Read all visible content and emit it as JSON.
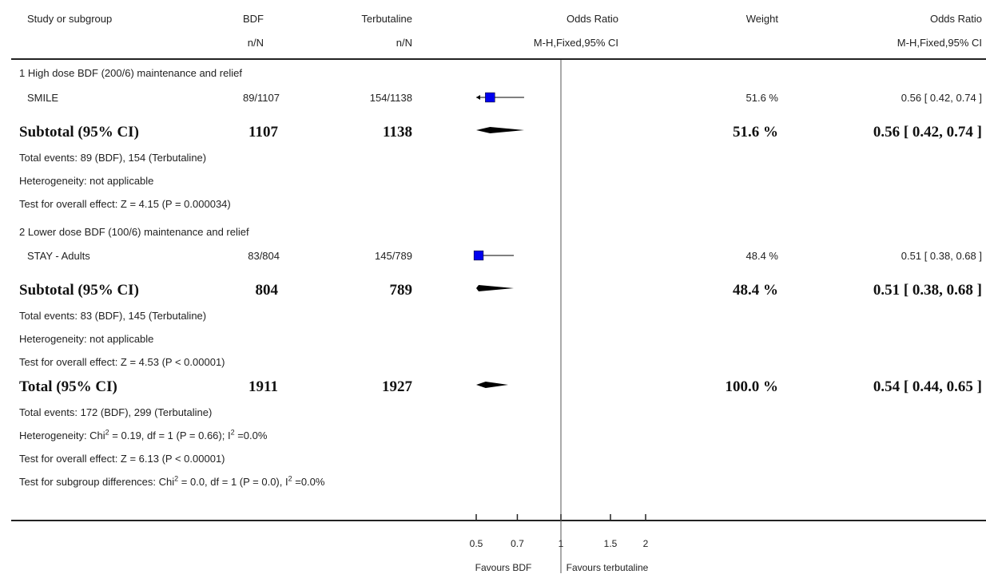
{
  "header": {
    "study": "Study or subgroup",
    "bdf": "BDF",
    "terb": "Terbutaline",
    "or": "Odds Ratio",
    "weight": "Weight",
    "or2": "Odds Ratio",
    "bdf_sub": "n/N",
    "terb_sub": "n/N",
    "or_sub": "M-H,Fixed,95% CI",
    "or2_sub": "M-H,Fixed,95% CI"
  },
  "groups": [
    {
      "title": "1 High dose BDF (200/6) maintenance and relief",
      "study": {
        "name": "SMILE",
        "bdf": "89/1107",
        "terb": "154/1138",
        "weight": "51.6 %",
        "ci_text": "0.56 [ 0.42, 0.74 ]"
      },
      "subtotal": {
        "label": "Subtotal (95% CI)",
        "bdf": "1107",
        "terb": "1138",
        "weight": "51.6 %",
        "ci_text": "0.56 [ 0.42, 0.74 ]"
      },
      "notes": [
        "Total events: 89 (BDF), 154 (Terbutaline)",
        "Heterogeneity: not applicable",
        "Test for overall effect: Z = 4.15 (P = 0.000034)"
      ]
    },
    {
      "title": "2 Lower dose BDF (100/6) maintenance and relief",
      "study": {
        "name": "STAY - Adults",
        "bdf": "83/804",
        "terb": "145/789",
        "weight": "48.4 %",
        "ci_text": "0.51 [ 0.38, 0.68 ]"
      },
      "subtotal": {
        "label": "Subtotal (95% CI)",
        "bdf": "804",
        "terb": "789",
        "weight": "48.4 %",
        "ci_text": "0.51 [ 0.38, 0.68 ]"
      },
      "notes": [
        "Total events: 83 (BDF), 145 (Terbutaline)",
        "Heterogeneity: not applicable",
        "Test for overall effect: Z = 4.53 (P < 0.00001)"
      ]
    }
  ],
  "total": {
    "label": "Total (95% CI)",
    "bdf": "1911",
    "terb": "1927",
    "weight": "100.0 %",
    "ci_text": "0.54 [ 0.44, 0.65 ]",
    "events": "Total events: 172 (BDF), 299 (Terbutaline)",
    "het_pre": "Heterogeneity: Chi",
    "het_mid": " = 0.19, df = 1 (P = 0.66); I",
    "het_post": " =0.0%",
    "overall": "Test for overall effect: Z = 6.13 (P < 0.00001)",
    "sub_pre": "Test for subgroup differences: Chi",
    "sub_mid": " = 0.0, df = 1 (P = 0.0), I",
    "sub_post": " =0.0%",
    "sup": "2"
  },
  "chart_data": {
    "type": "forest",
    "scale": "log",
    "xlim": [
      0.5,
      2
    ],
    "ticks": [
      {
        "value": 0.5,
        "label": "0.5"
      },
      {
        "value": 0.7,
        "label": "0.7"
      },
      {
        "value": 1,
        "label": "1"
      },
      {
        "value": 1.5,
        "label": "1.5"
      },
      {
        "value": 2,
        "label": "2"
      }
    ],
    "favours_left": "Favours BDF",
    "favours_right": "Favours terbutaline",
    "square_color": "#0000ee",
    "studies": [
      {
        "name": "SMILE",
        "or": 0.56,
        "lo": 0.42,
        "hi": 0.74,
        "weight": 51.6
      },
      {
        "name": "STAY - Adults",
        "or": 0.51,
        "lo": 0.38,
        "hi": 0.68,
        "weight": 48.4
      }
    ],
    "diamonds": [
      {
        "name": "Subtotal 1",
        "or": 0.56,
        "lo": 0.42,
        "hi": 0.74
      },
      {
        "name": "Subtotal 2",
        "or": 0.51,
        "lo": 0.38,
        "hi": 0.68
      },
      {
        "name": "Total",
        "or": 0.54,
        "lo": 0.44,
        "hi": 0.65
      }
    ]
  }
}
